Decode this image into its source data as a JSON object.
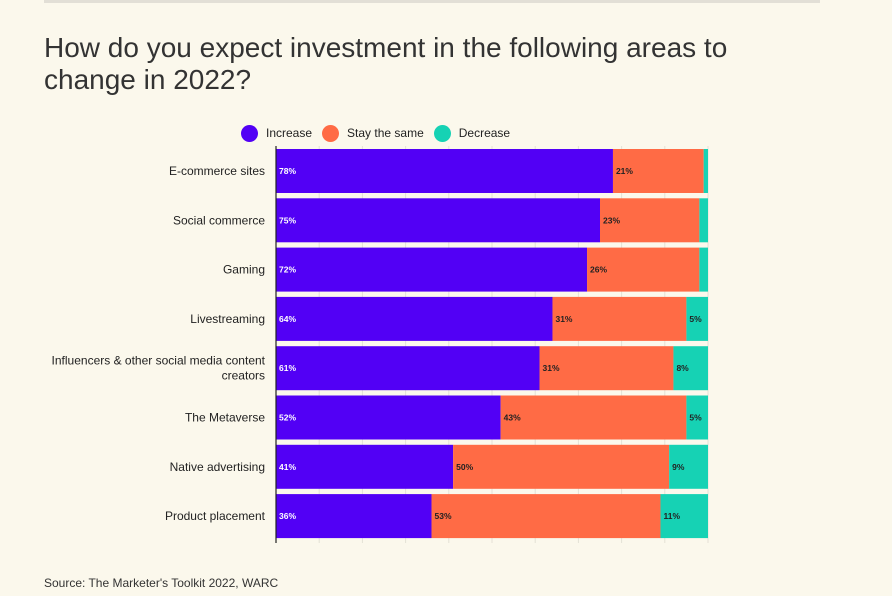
{
  "header": {
    "title": "How do you expect investment in the following areas to change in 2022?"
  },
  "legend": {
    "items": [
      {
        "label": "Increase",
        "color": "#5200f5"
      },
      {
        "label": "Stay the same",
        "color": "#ff6b45"
      },
      {
        "label": "Decrease",
        "color": "#16d2b4"
      }
    ]
  },
  "footer": {
    "source": "Source: The Marketer's Toolkit 2022, WARC"
  },
  "chart_data": {
    "type": "bar",
    "orientation": "horizontal",
    "stacked": true,
    "title": "How do you expect investment in the following areas to change in 2022?",
    "categories": [
      [
        "E-commerce sites"
      ],
      [
        "Social commerce"
      ],
      [
        "Gaming"
      ],
      [
        "Livestreaming"
      ],
      [
        "Influencers & other social media content",
        "creators"
      ],
      [
        "The Metaverse"
      ],
      [
        "Native advertising"
      ],
      [
        "Product placement"
      ]
    ],
    "series": [
      {
        "name": "Increase",
        "color": "#5200f5",
        "values": [
          78,
          75,
          72,
          64,
          61,
          52,
          41,
          36
        ]
      },
      {
        "name": "Stay the same",
        "color": "#ff6b45",
        "values": [
          21,
          23,
          26,
          31,
          31,
          43,
          50,
          53
        ]
      },
      {
        "name": "Decrease",
        "color": "#16d2b4",
        "values": [
          1,
          2,
          2,
          5,
          8,
          5,
          9,
          11
        ]
      }
    ],
    "value_labels": [
      [
        "78%",
        "21%",
        ""
      ],
      [
        "75%",
        "23%",
        ""
      ],
      [
        "72%",
        "26%",
        ""
      ],
      [
        "64%",
        "31%",
        "5%"
      ],
      [
        "61%",
        "31%",
        "8%"
      ],
      [
        "52%",
        "43%",
        "5%"
      ],
      [
        "41%",
        "50%",
        "9%"
      ],
      [
        "36%",
        "53%",
        "11%"
      ]
    ],
    "xlim": [
      0,
      100
    ],
    "grid": true,
    "legend_position": "top"
  }
}
